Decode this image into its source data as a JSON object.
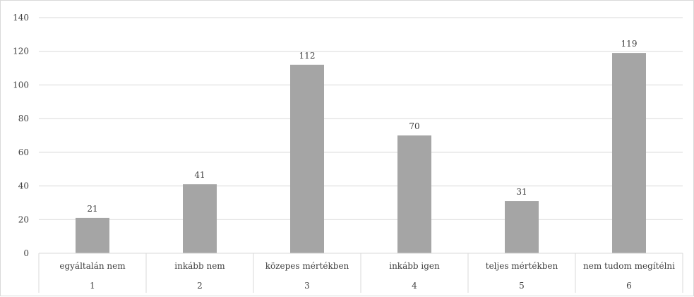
{
  "chart_data": {
    "type": "bar",
    "title": "",
    "xlabel": "",
    "ylabel": "",
    "ylim": [
      0,
      140
    ],
    "yticks": [
      0,
      20,
      40,
      60,
      80,
      100,
      120,
      140
    ],
    "grid": true,
    "legend": "none",
    "categories": [
      {
        "label": "egyáltalán nem",
        "code": "1"
      },
      {
        "label": "inkább nem",
        "code": "2"
      },
      {
        "label": "közepes mértékben",
        "code": "3"
      },
      {
        "label": "inkább igen",
        "code": "4"
      },
      {
        "label": "teljes mértékben",
        "code": "5"
      },
      {
        "label": "nem tudom megítélni",
        "code": "6"
      }
    ],
    "values": [
      21,
      41,
      112,
      70,
      31,
      119
    ],
    "colors": {
      "bar": "#a5a5a5",
      "grid": "#d9d9d9",
      "text": "#404040"
    }
  }
}
